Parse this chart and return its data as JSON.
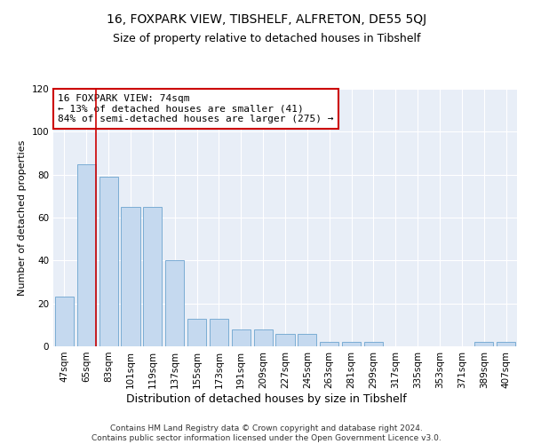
{
  "title": "16, FOXPARK VIEW, TIBSHELF, ALFRETON, DE55 5QJ",
  "subtitle": "Size of property relative to detached houses in Tibshelf",
  "xlabel": "Distribution of detached houses by size in Tibshelf",
  "ylabel": "Number of detached properties",
  "categories": [
    "47sqm",
    "65sqm",
    "83sqm",
    "101sqm",
    "119sqm",
    "137sqm",
    "155sqm",
    "173sqm",
    "191sqm",
    "209sqm",
    "227sqm",
    "245sqm",
    "263sqm",
    "281sqm",
    "299sqm",
    "317sqm",
    "335sqm",
    "353sqm",
    "371sqm",
    "389sqm",
    "407sqm"
  ],
  "values": [
    23,
    85,
    79,
    65,
    65,
    40,
    13,
    13,
    8,
    8,
    6,
    6,
    2,
    2,
    2,
    0,
    0,
    0,
    0,
    2,
    2
  ],
  "bar_color": "#c5d9ef",
  "bar_edge_color": "#7badd4",
  "vline_color": "#cc0000",
  "vline_xindex": 1,
  "annotation_text": "16 FOXPARK VIEW: 74sqm\n← 13% of detached houses are smaller (41)\n84% of semi-detached houses are larger (275) →",
  "annotation_box_color": "#ffffff",
  "annotation_box_edge": "#cc0000",
  "ylim": [
    0,
    120
  ],
  "yticks": [
    0,
    20,
    40,
    60,
    80,
    100,
    120
  ],
  "bg_color": "#e8eef7",
  "footer": "Contains HM Land Registry data © Crown copyright and database right 2024.\nContains public sector information licensed under the Open Government Licence v3.0.",
  "title_fontsize": 10,
  "subtitle_fontsize": 9,
  "xlabel_fontsize": 9,
  "ylabel_fontsize": 8,
  "tick_fontsize": 7.5,
  "annot_fontsize": 8,
  "footer_fontsize": 6.5
}
